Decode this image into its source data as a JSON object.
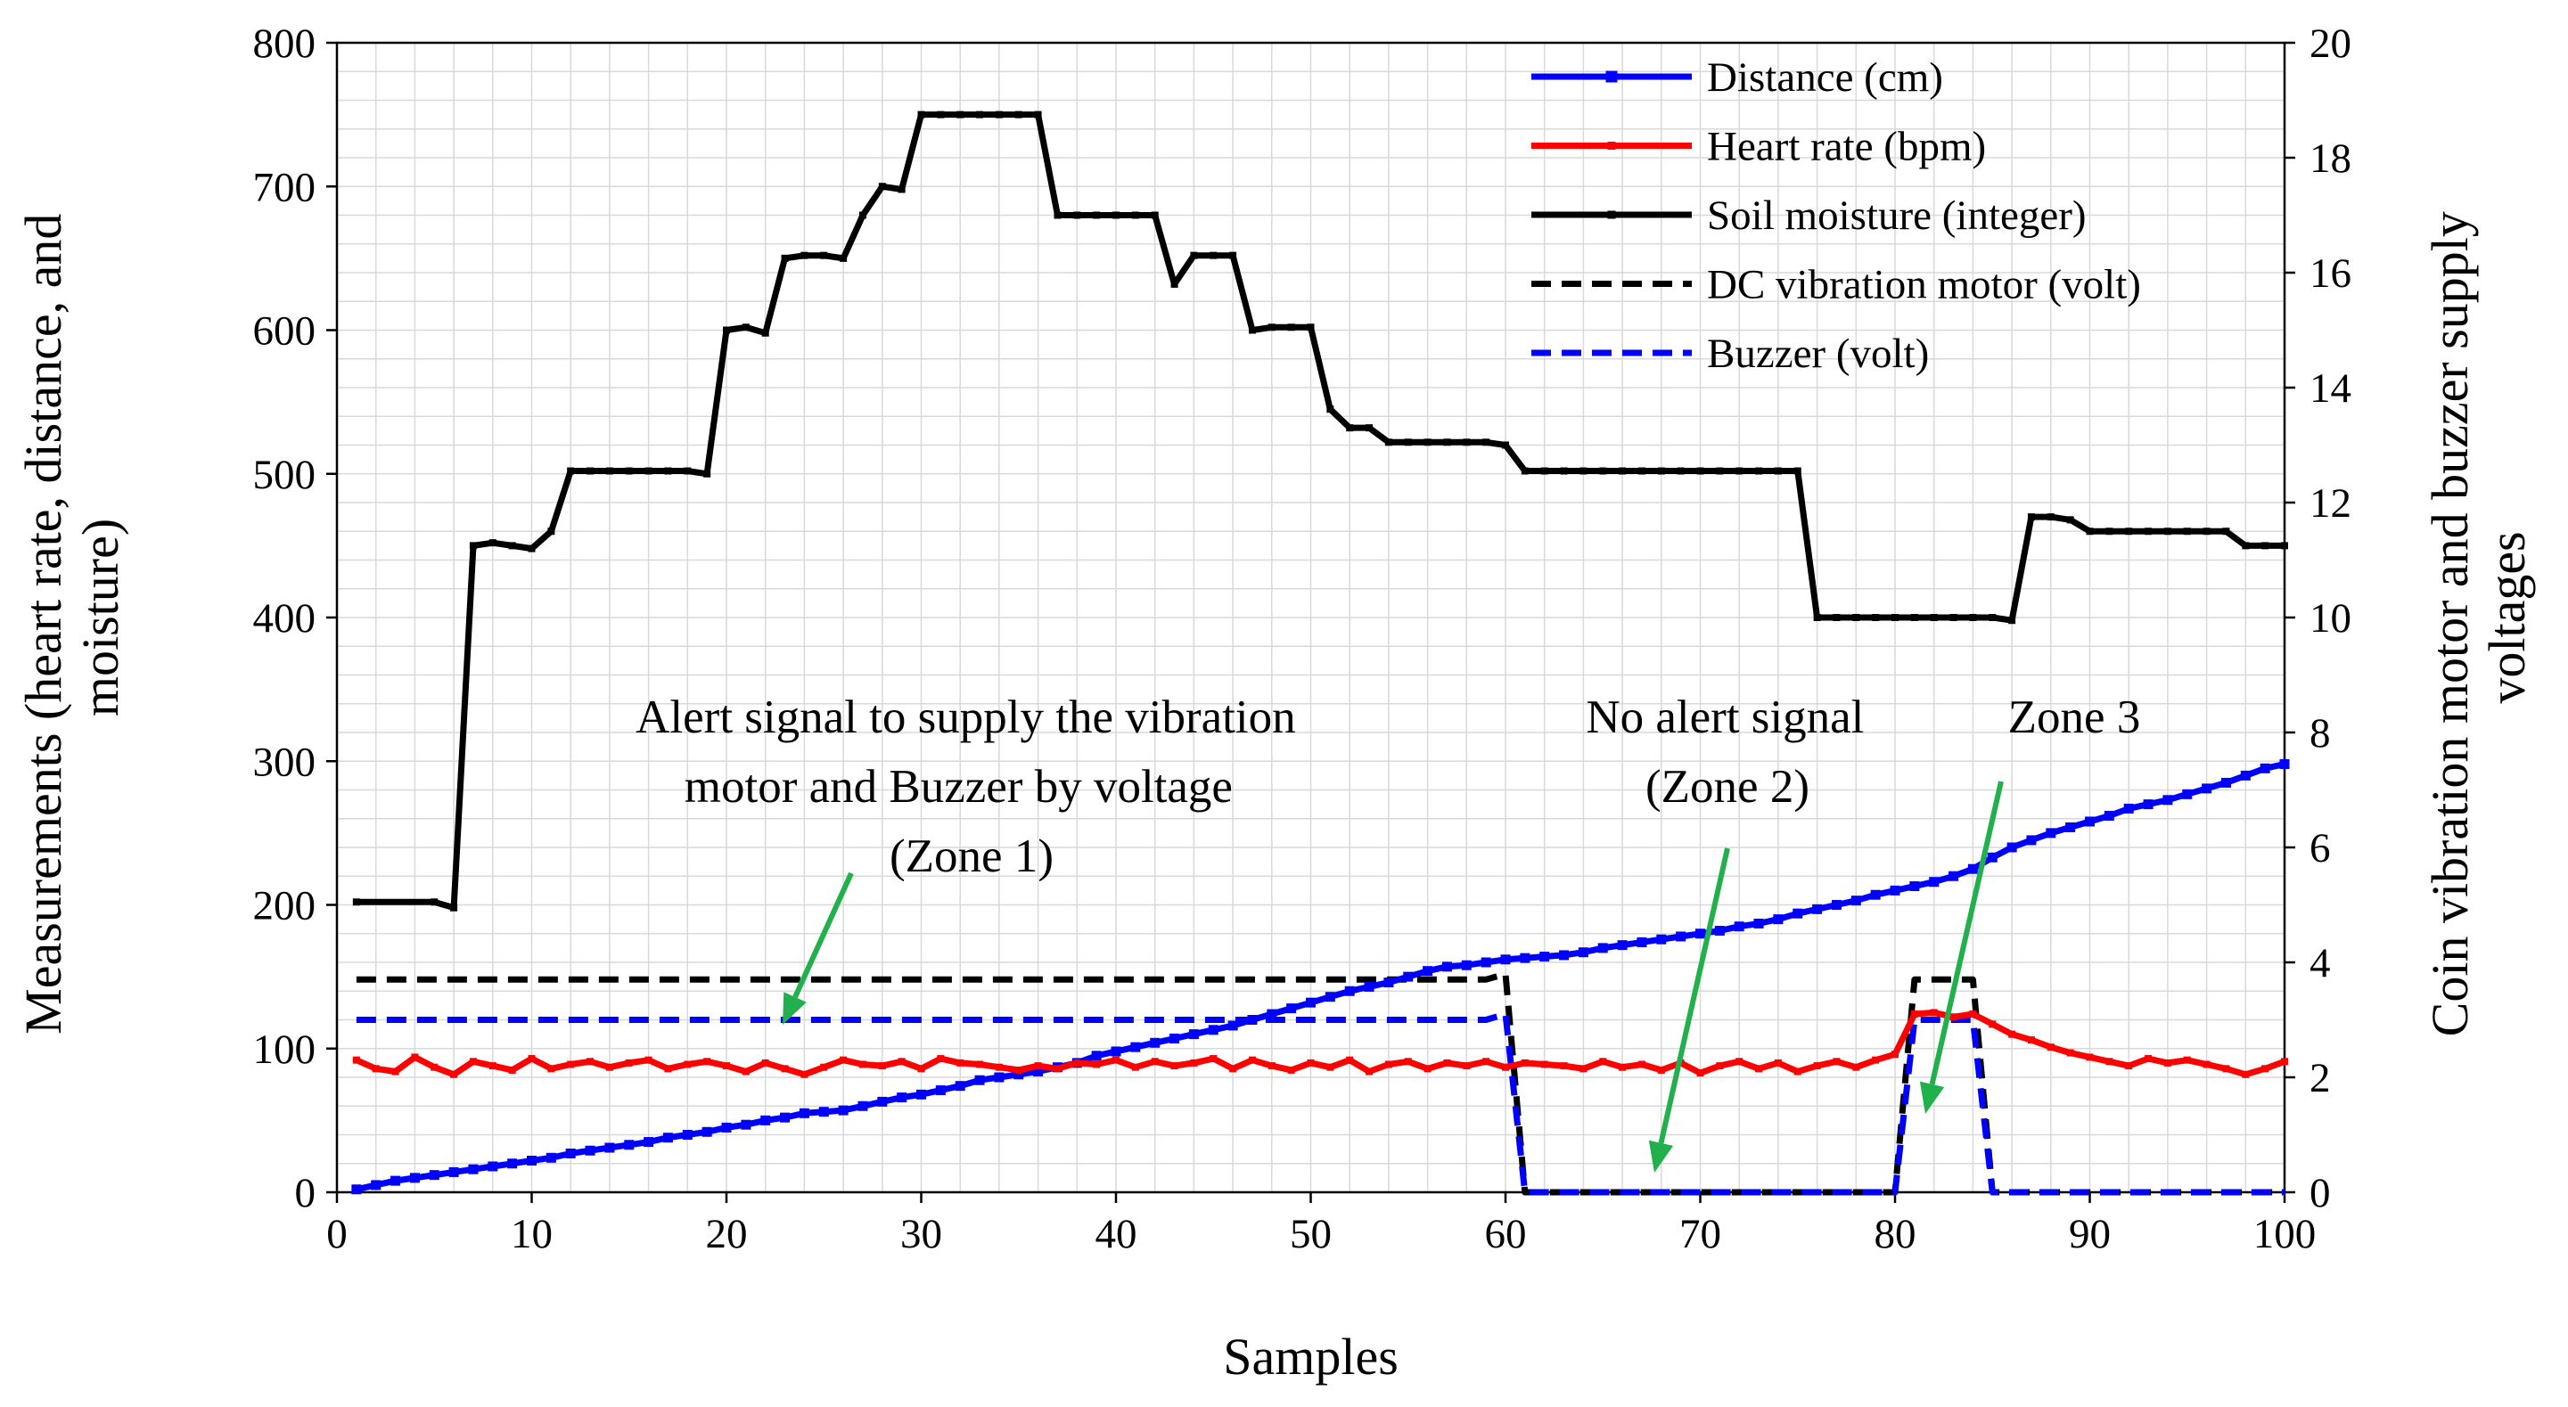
{
  "chart_data": {
    "type": "line",
    "title": "",
    "xlabel": "Samples",
    "ylabel_lines": [
      "Measurements (heart rate, distance, and",
      "moisture)"
    ],
    "y2label_lines": [
      "Coin vibration motor and buzzer supply",
      "voltages"
    ],
    "xlim": [
      0,
      100
    ],
    "ylim": [
      0,
      800
    ],
    "y2lim": [
      0,
      20
    ],
    "x_ticks": [
      "0",
      "10",
      "20",
      "30",
      "40",
      "50",
      "60",
      "70",
      "80",
      "90",
      "100"
    ],
    "y_ticks": [
      "0",
      "100",
      "200",
      "300",
      "400",
      "500",
      "600",
      "700",
      "800"
    ],
    "y2_ticks": [
      "0",
      "2",
      "4",
      "6",
      "8",
      "10",
      "12",
      "14",
      "16",
      "18",
      "20"
    ],
    "grid": true,
    "legend_position": "top-right",
    "colors": {
      "distance": "#0000ff",
      "heart": "#ff0000",
      "soil": "#000000",
      "motor": "#000000",
      "buzzer": "#0000ff",
      "arrow": "#21b04b",
      "grid": "#d9d9d9"
    },
    "series": [
      {
        "key": "distance",
        "name": "Distance (cm)",
        "axis": "left",
        "style": "solid-marker",
        "x": [
          1,
          2,
          3,
          4,
          5,
          6,
          7,
          8,
          9,
          10,
          11,
          12,
          13,
          14,
          15,
          16,
          17,
          18,
          19,
          20,
          21,
          22,
          23,
          24,
          25,
          26,
          27,
          28,
          29,
          30,
          31,
          32,
          33,
          34,
          35,
          36,
          37,
          38,
          39,
          40,
          41,
          42,
          43,
          44,
          45,
          46,
          47,
          48,
          49,
          50,
          51,
          52,
          53,
          54,
          55,
          56,
          57,
          58,
          59,
          60,
          61,
          62,
          63,
          64,
          65,
          66,
          67,
          68,
          69,
          70,
          71,
          72,
          73,
          74,
          75,
          76,
          77,
          78,
          79,
          80,
          81,
          82,
          83,
          84,
          85,
          86,
          87,
          88,
          89,
          90,
          91,
          92,
          93,
          94,
          95,
          96,
          97,
          98,
          99,
          100
        ],
        "y": [
          2,
          5,
          8,
          10,
          12,
          14,
          16,
          18,
          20,
          22,
          24,
          27,
          29,
          31,
          33,
          35,
          38,
          40,
          42,
          45,
          47,
          50,
          52,
          55,
          56,
          57,
          60,
          63,
          66,
          68,
          71,
          74,
          78,
          80,
          82,
          84,
          87,
          90,
          95,
          98,
          101,
          104,
          107,
          110,
          113,
          116,
          120,
          124,
          128,
          132,
          136,
          140,
          143,
          146,
          150,
          154,
          157,
          158,
          160,
          162,
          163,
          164,
          165,
          167,
          170,
          172,
          174,
          176,
          178,
          180,
          182,
          185,
          187,
          190,
          194,
          197,
          200,
          203,
          207,
          210,
          213,
          216,
          220,
          225,
          233,
          240,
          245,
          250,
          254,
          258,
          262,
          267,
          270,
          273,
          277,
          281,
          285,
          290,
          295,
          298
        ]
      },
      {
        "key": "heart",
        "name": "Heart rate (bpm)",
        "axis": "left",
        "style": "solid-marker",
        "x": [
          1,
          2,
          3,
          4,
          5,
          6,
          7,
          8,
          9,
          10,
          11,
          12,
          13,
          14,
          15,
          16,
          17,
          18,
          19,
          20,
          21,
          22,
          23,
          24,
          25,
          26,
          27,
          28,
          29,
          30,
          31,
          32,
          33,
          34,
          35,
          36,
          37,
          38,
          39,
          40,
          41,
          42,
          43,
          44,
          45,
          46,
          47,
          48,
          49,
          50,
          51,
          52,
          53,
          54,
          55,
          56,
          57,
          58,
          59,
          60,
          61,
          62,
          63,
          64,
          65,
          66,
          67,
          68,
          69,
          70,
          71,
          72,
          73,
          74,
          75,
          76,
          77,
          78,
          79,
          80,
          81,
          82,
          83,
          84,
          85,
          86,
          87,
          88,
          89,
          90,
          91,
          92,
          93,
          94,
          95,
          96,
          97,
          98,
          99,
          100
        ],
        "y": [
          92,
          86,
          84,
          94,
          87,
          82,
          91,
          88,
          85,
          93,
          86,
          89,
          91,
          87,
          90,
          92,
          86,
          89,
          91,
          88,
          84,
          90,
          86,
          82,
          87,
          92,
          89,
          88,
          91,
          86,
          93,
          90,
          89,
          87,
          85,
          88,
          86,
          90,
          89,
          92,
          87,
          91,
          88,
          90,
          93,
          86,
          92,
          88,
          85,
          90,
          87,
          92,
          84,
          89,
          91,
          86,
          90,
          88,
          91,
          87,
          90,
          89,
          88,
          86,
          91,
          87,
          89,
          85,
          90,
          83,
          88,
          91,
          86,
          90,
          84,
          88,
          91,
          87,
          92,
          96,
          124,
          125,
          122,
          124,
          117,
          110,
          106,
          101,
          97,
          94,
          91,
          88,
          93,
          90,
          92,
          89,
          86,
          82,
          86,
          91
        ]
      },
      {
        "key": "soil",
        "name": "Soil moisture (integer)",
        "axis": "left",
        "style": "solid-marker",
        "x": [
          1,
          5,
          6,
          7,
          8,
          9,
          10,
          11,
          12,
          13,
          14,
          15,
          16,
          17,
          18,
          19,
          20,
          21,
          22,
          23,
          24,
          25,
          26,
          27,
          28,
          29,
          30,
          31,
          32,
          33,
          34,
          35,
          36,
          37,
          38,
          39,
          40,
          41,
          42,
          43,
          44,
          45,
          46,
          47,
          48,
          49,
          50,
          51,
          52,
          53,
          54,
          55,
          56,
          57,
          58,
          59,
          60,
          61,
          62,
          63,
          64,
          65,
          66,
          67,
          68,
          69,
          70,
          71,
          72,
          73,
          74,
          75,
          76,
          77,
          78,
          79,
          80,
          81,
          82,
          83,
          84,
          85,
          86,
          87,
          88,
          89,
          90,
          91,
          92,
          93,
          94,
          95,
          96,
          97,
          98,
          99,
          100
        ],
        "y": [
          202,
          202,
          198,
          450,
          452,
          450,
          448,
          460,
          502,
          502,
          502,
          502,
          502,
          502,
          502,
          500,
          600,
          602,
          598,
          650,
          652,
          652,
          650,
          680,
          700,
          698,
          750,
          750,
          750,
          750,
          750,
          750,
          750,
          680,
          680,
          680,
          680,
          680,
          680,
          632,
          652,
          652,
          652,
          600,
          602,
          602,
          602,
          545,
          532,
          532,
          522,
          522,
          522,
          522,
          522,
          522,
          520,
          502,
          502,
          502,
          502,
          502,
          502,
          502,
          502,
          502,
          502,
          502,
          502,
          502,
          502,
          502,
          400,
          400,
          400,
          400,
          400,
          400,
          400,
          400,
          400,
          400,
          398,
          470,
          470,
          468,
          460,
          460,
          460,
          460,
          460,
          460,
          460,
          460,
          450,
          450,
          450
        ]
      },
      {
        "key": "motor",
        "name": "DC vibration motor (volt)",
        "axis": "right",
        "style": "dashed",
        "x": [
          1,
          59,
          60,
          61,
          62,
          79,
          80,
          81,
          82,
          83,
          84,
          85,
          86,
          100
        ],
        "y": [
          3.7,
          3.7,
          3.8,
          0,
          0,
          0,
          0,
          3.7,
          3.7,
          3.7,
          3.7,
          0,
          0,
          0
        ]
      },
      {
        "key": "buzzer",
        "name": "Buzzer (volt)",
        "axis": "right",
        "style": "dashed",
        "x": [
          1,
          59,
          60,
          61,
          62,
          79,
          80,
          81,
          82,
          83,
          84,
          85,
          86,
          100
        ],
        "y": [
          3,
          3,
          3.1,
          0,
          0,
          0,
          0,
          3,
          3,
          3,
          3,
          0,
          0,
          0
        ]
      }
    ],
    "annotations": {
      "zone1_lines": [
        "Alert signal to supply the vibration",
        "motor and Buzzer by voltage",
        "(Zone 1)"
      ],
      "zone2_lines": [
        "No alert signal",
        "(Zone 2)"
      ],
      "zone3_lines": [
        "Zone 3"
      ]
    }
  }
}
